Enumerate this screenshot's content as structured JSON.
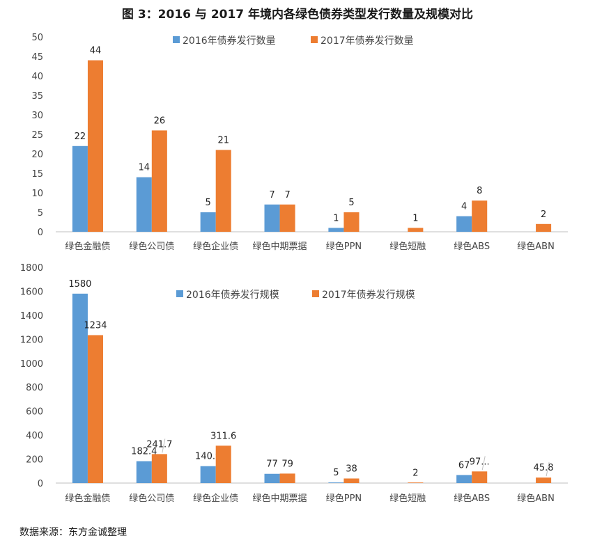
{
  "page": {
    "title": "图 3：2016 与 2017 年境内各绿色债券类型发行数量及规模对比",
    "source": "数据来源：东方金诚整理"
  },
  "colors": {
    "series_2016": "#5b9bd5",
    "series_2017": "#ed7d31",
    "axis": "#bfbfbf"
  },
  "chart_data": [
    {
      "type": "bar",
      "categories": [
        "绿色金融债",
        "绿色公司债",
        "绿色企业债",
        "绿色中期票据",
        "绿色PPN",
        "绿色短融",
        "绿色ABS",
        "绿色ABN"
      ],
      "series": [
        {
          "name": "2016年债券发行数量",
          "values": [
            22,
            14,
            5,
            7,
            1,
            null,
            4,
            null
          ],
          "labels": [
            "22",
            "14",
            "5",
            "7",
            "1",
            "",
            "4",
            ""
          ]
        },
        {
          "name": "2017年债券发行数量",
          "values": [
            44,
            26,
            21,
            7,
            5,
            1,
            8,
            2
          ],
          "labels": [
            "44",
            "26",
            "21",
            "7",
            "5",
            "1",
            "8",
            "2"
          ]
        }
      ],
      "ylim": [
        0,
        50
      ],
      "yticks": [
        0,
        5,
        10,
        15,
        20,
        25,
        30,
        35,
        40,
        45,
        50
      ],
      "grid": false,
      "legend": "top-center"
    },
    {
      "type": "bar",
      "categories": [
        "绿色金融债",
        "绿色公司债",
        "绿色企业债",
        "绿色中期票据",
        "绿色PPN",
        "绿色短融",
        "绿色ABS",
        "绿色ABN"
      ],
      "series": [
        {
          "name": "2016年债券发行规模",
          "values": [
            1580,
            182.4,
            140.9,
            77,
            5,
            null,
            67,
            null
          ],
          "labels": [
            "1580",
            "182.4",
            "140.9",
            "77",
            "5",
            "",
            "67",
            ""
          ]
        },
        {
          "name": "2017年债券发行规模",
          "values": [
            1234,
            241.7,
            311.6,
            79,
            38,
            2,
            97,
            45.8
          ],
          "labels": [
            "1234",
            "241.7",
            "311.6",
            "79",
            "38",
            "2",
            "97...",
            "45.8"
          ]
        }
      ],
      "ylim": [
        0,
        1800
      ],
      "yticks": [
        0,
        200,
        400,
        600,
        800,
        1000,
        1200,
        1400,
        1600,
        1800
      ],
      "grid": false,
      "legend": "top-center"
    }
  ]
}
